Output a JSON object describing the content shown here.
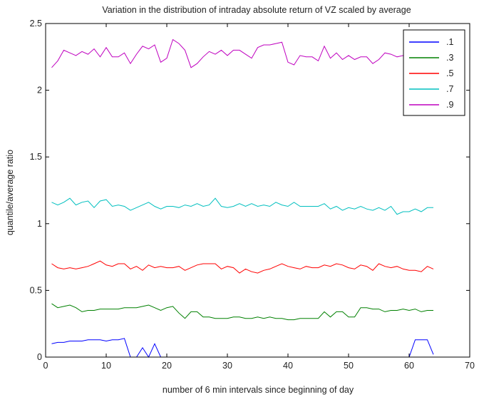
{
  "chart_data": {
    "type": "line",
    "title": "Variation in the distribution of intraday absolute return of VZ scaled by average",
    "xlabel": "number of 6 min intervals since beginning of day",
    "ylabel": "quantile/average ratio",
    "xlim": [
      0,
      70
    ],
    "ylim": [
      0,
      2.5
    ],
    "xticks": [
      0,
      10,
      20,
      30,
      40,
      50,
      60,
      70
    ],
    "yticks": [
      0,
      0.5,
      1,
      1.5,
      2,
      2.5
    ],
    "xtick_labels": [
      "0",
      "10",
      "20",
      "30",
      "40",
      "50",
      "60",
      "70"
    ],
    "ytick_labels": [
      "0",
      "0.5",
      "1",
      "1.5",
      "2",
      "2.5"
    ],
    "grid": false,
    "legend_position": "top-right",
    "series": [
      {
        "name": ".1",
        "color": "#0000ff",
        "x": [
          1,
          2,
          3,
          4,
          5,
          6,
          7,
          8,
          9,
          10,
          11,
          12,
          13,
          14,
          15,
          16,
          17,
          18,
          19,
          19.3,
          57,
          58,
          59,
          60,
          61,
          62,
          63,
          64
        ],
        "y": [
          0.1,
          0.11,
          0.11,
          0.12,
          0.12,
          0.12,
          0.13,
          0.13,
          0.13,
          0.12,
          0.13,
          0.13,
          0.14,
          0.0,
          0.0,
          0.07,
          0.0,
          0.1,
          0.0,
          0.0,
          0.0,
          0.0,
          0.0,
          0.0,
          0.13,
          0.13,
          0.13,
          0.02
        ]
      },
      {
        "name": ".3",
        "color": "#008000",
        "x": [
          1,
          2,
          3,
          4,
          5,
          6,
          7,
          8,
          9,
          10,
          11,
          12,
          13,
          14,
          15,
          16,
          17,
          18,
          19,
          20,
          21,
          22,
          23,
          24,
          25,
          26,
          27,
          28,
          29,
          30,
          31,
          32,
          33,
          34,
          35,
          36,
          37,
          38,
          39,
          40,
          41,
          42,
          43,
          44,
          45,
          46,
          47,
          48,
          49,
          50,
          51,
          52,
          53,
          54,
          55,
          56,
          57,
          58,
          59,
          60,
          61,
          62,
          63,
          64
        ],
        "y": [
          0.4,
          0.37,
          0.38,
          0.39,
          0.37,
          0.34,
          0.35,
          0.35,
          0.36,
          0.36,
          0.36,
          0.36,
          0.37,
          0.37,
          0.37,
          0.38,
          0.39,
          0.37,
          0.35,
          0.37,
          0.38,
          0.33,
          0.29,
          0.34,
          0.34,
          0.3,
          0.3,
          0.29,
          0.29,
          0.29,
          0.3,
          0.3,
          0.29,
          0.29,
          0.3,
          0.29,
          0.3,
          0.29,
          0.29,
          0.28,
          0.28,
          0.29,
          0.29,
          0.29,
          0.29,
          0.34,
          0.3,
          0.34,
          0.34,
          0.3,
          0.3,
          0.37,
          0.37,
          0.36,
          0.36,
          0.34,
          0.35,
          0.35,
          0.36,
          0.35,
          0.36,
          0.34,
          0.35,
          0.35
        ]
      },
      {
        "name": ".5",
        "color": "#ff0000",
        "x": [
          1,
          2,
          3,
          4,
          5,
          6,
          7,
          8,
          9,
          10,
          11,
          12,
          13,
          14,
          15,
          16,
          17,
          18,
          19,
          20,
          21,
          22,
          23,
          24,
          25,
          26,
          27,
          28,
          29,
          30,
          31,
          32,
          33,
          34,
          35,
          36,
          37,
          38,
          39,
          40,
          41,
          42,
          43,
          44,
          45,
          46,
          47,
          48,
          49,
          50,
          51,
          52,
          53,
          54,
          55,
          56,
          57,
          58,
          59,
          60,
          61,
          62,
          63,
          64
        ],
        "y": [
          0.7,
          0.67,
          0.66,
          0.67,
          0.66,
          0.67,
          0.68,
          0.7,
          0.72,
          0.69,
          0.68,
          0.7,
          0.7,
          0.66,
          0.68,
          0.65,
          0.69,
          0.67,
          0.68,
          0.67,
          0.67,
          0.68,
          0.65,
          0.67,
          0.69,
          0.7,
          0.7,
          0.7,
          0.66,
          0.68,
          0.67,
          0.63,
          0.66,
          0.64,
          0.63,
          0.65,
          0.66,
          0.68,
          0.7,
          0.68,
          0.67,
          0.66,
          0.68,
          0.67,
          0.67,
          0.69,
          0.68,
          0.7,
          0.69,
          0.67,
          0.66,
          0.69,
          0.68,
          0.65,
          0.7,
          0.68,
          0.67,
          0.68,
          0.66,
          0.65,
          0.65,
          0.64,
          0.68,
          0.66
        ]
      },
      {
        "name": ".7",
        "color": "#00bfbf",
        "x": [
          1,
          2,
          3,
          4,
          5,
          6,
          7,
          8,
          9,
          10,
          11,
          12,
          13,
          14,
          15,
          16,
          17,
          18,
          19,
          20,
          21,
          22,
          23,
          24,
          25,
          26,
          27,
          28,
          29,
          30,
          31,
          32,
          33,
          34,
          35,
          36,
          37,
          38,
          39,
          40,
          41,
          42,
          43,
          44,
          45,
          46,
          47,
          48,
          49,
          50,
          51,
          52,
          53,
          54,
          55,
          56,
          57,
          58,
          59,
          60,
          61,
          62,
          63,
          64
        ],
        "y": [
          1.16,
          1.14,
          1.16,
          1.19,
          1.14,
          1.16,
          1.17,
          1.12,
          1.17,
          1.18,
          1.13,
          1.14,
          1.13,
          1.1,
          1.12,
          1.14,
          1.16,
          1.13,
          1.11,
          1.13,
          1.13,
          1.12,
          1.14,
          1.13,
          1.15,
          1.13,
          1.14,
          1.19,
          1.13,
          1.12,
          1.13,
          1.15,
          1.13,
          1.15,
          1.13,
          1.14,
          1.13,
          1.16,
          1.14,
          1.13,
          1.16,
          1.13,
          1.13,
          1.13,
          1.13,
          1.15,
          1.11,
          1.13,
          1.1,
          1.12,
          1.11,
          1.13,
          1.11,
          1.1,
          1.12,
          1.1,
          1.13,
          1.07,
          1.09,
          1.09,
          1.11,
          1.09,
          1.12,
          1.12
        ]
      },
      {
        "name": ".9",
        "color": "#bf00bf",
        "x": [
          1,
          2,
          3,
          4,
          5,
          6,
          7,
          8,
          9,
          10,
          11,
          12,
          13,
          14,
          15,
          16,
          17,
          18,
          19,
          20,
          21,
          22,
          23,
          24,
          25,
          26,
          27,
          28,
          29,
          30,
          31,
          32,
          33,
          34,
          35,
          36,
          37,
          38,
          39,
          40,
          41,
          42,
          43,
          44,
          45,
          46,
          47,
          48,
          49,
          50,
          51,
          52,
          53,
          54,
          55,
          56,
          57,
          58,
          59,
          60,
          61,
          62,
          63,
          64
        ],
        "y": [
          2.17,
          2.22,
          2.3,
          2.28,
          2.26,
          2.29,
          2.27,
          2.31,
          2.25,
          2.32,
          2.25,
          2.25,
          2.28,
          2.2,
          2.27,
          2.33,
          2.31,
          2.34,
          2.21,
          2.24,
          2.38,
          2.35,
          2.3,
          2.17,
          2.2,
          2.25,
          2.29,
          2.27,
          2.3,
          2.26,
          2.3,
          2.3,
          2.27,
          2.24,
          2.32,
          2.34,
          2.34,
          2.35,
          2.36,
          2.21,
          2.19,
          2.26,
          2.25,
          2.25,
          2.22,
          2.33,
          2.24,
          2.28,
          2.23,
          2.26,
          2.23,
          2.25,
          2.25,
          2.2,
          2.23,
          2.28,
          2.27,
          2.25,
          2.26,
          2.18,
          2.2,
          2.26,
          2.21,
          2.23
        ]
      }
    ]
  }
}
